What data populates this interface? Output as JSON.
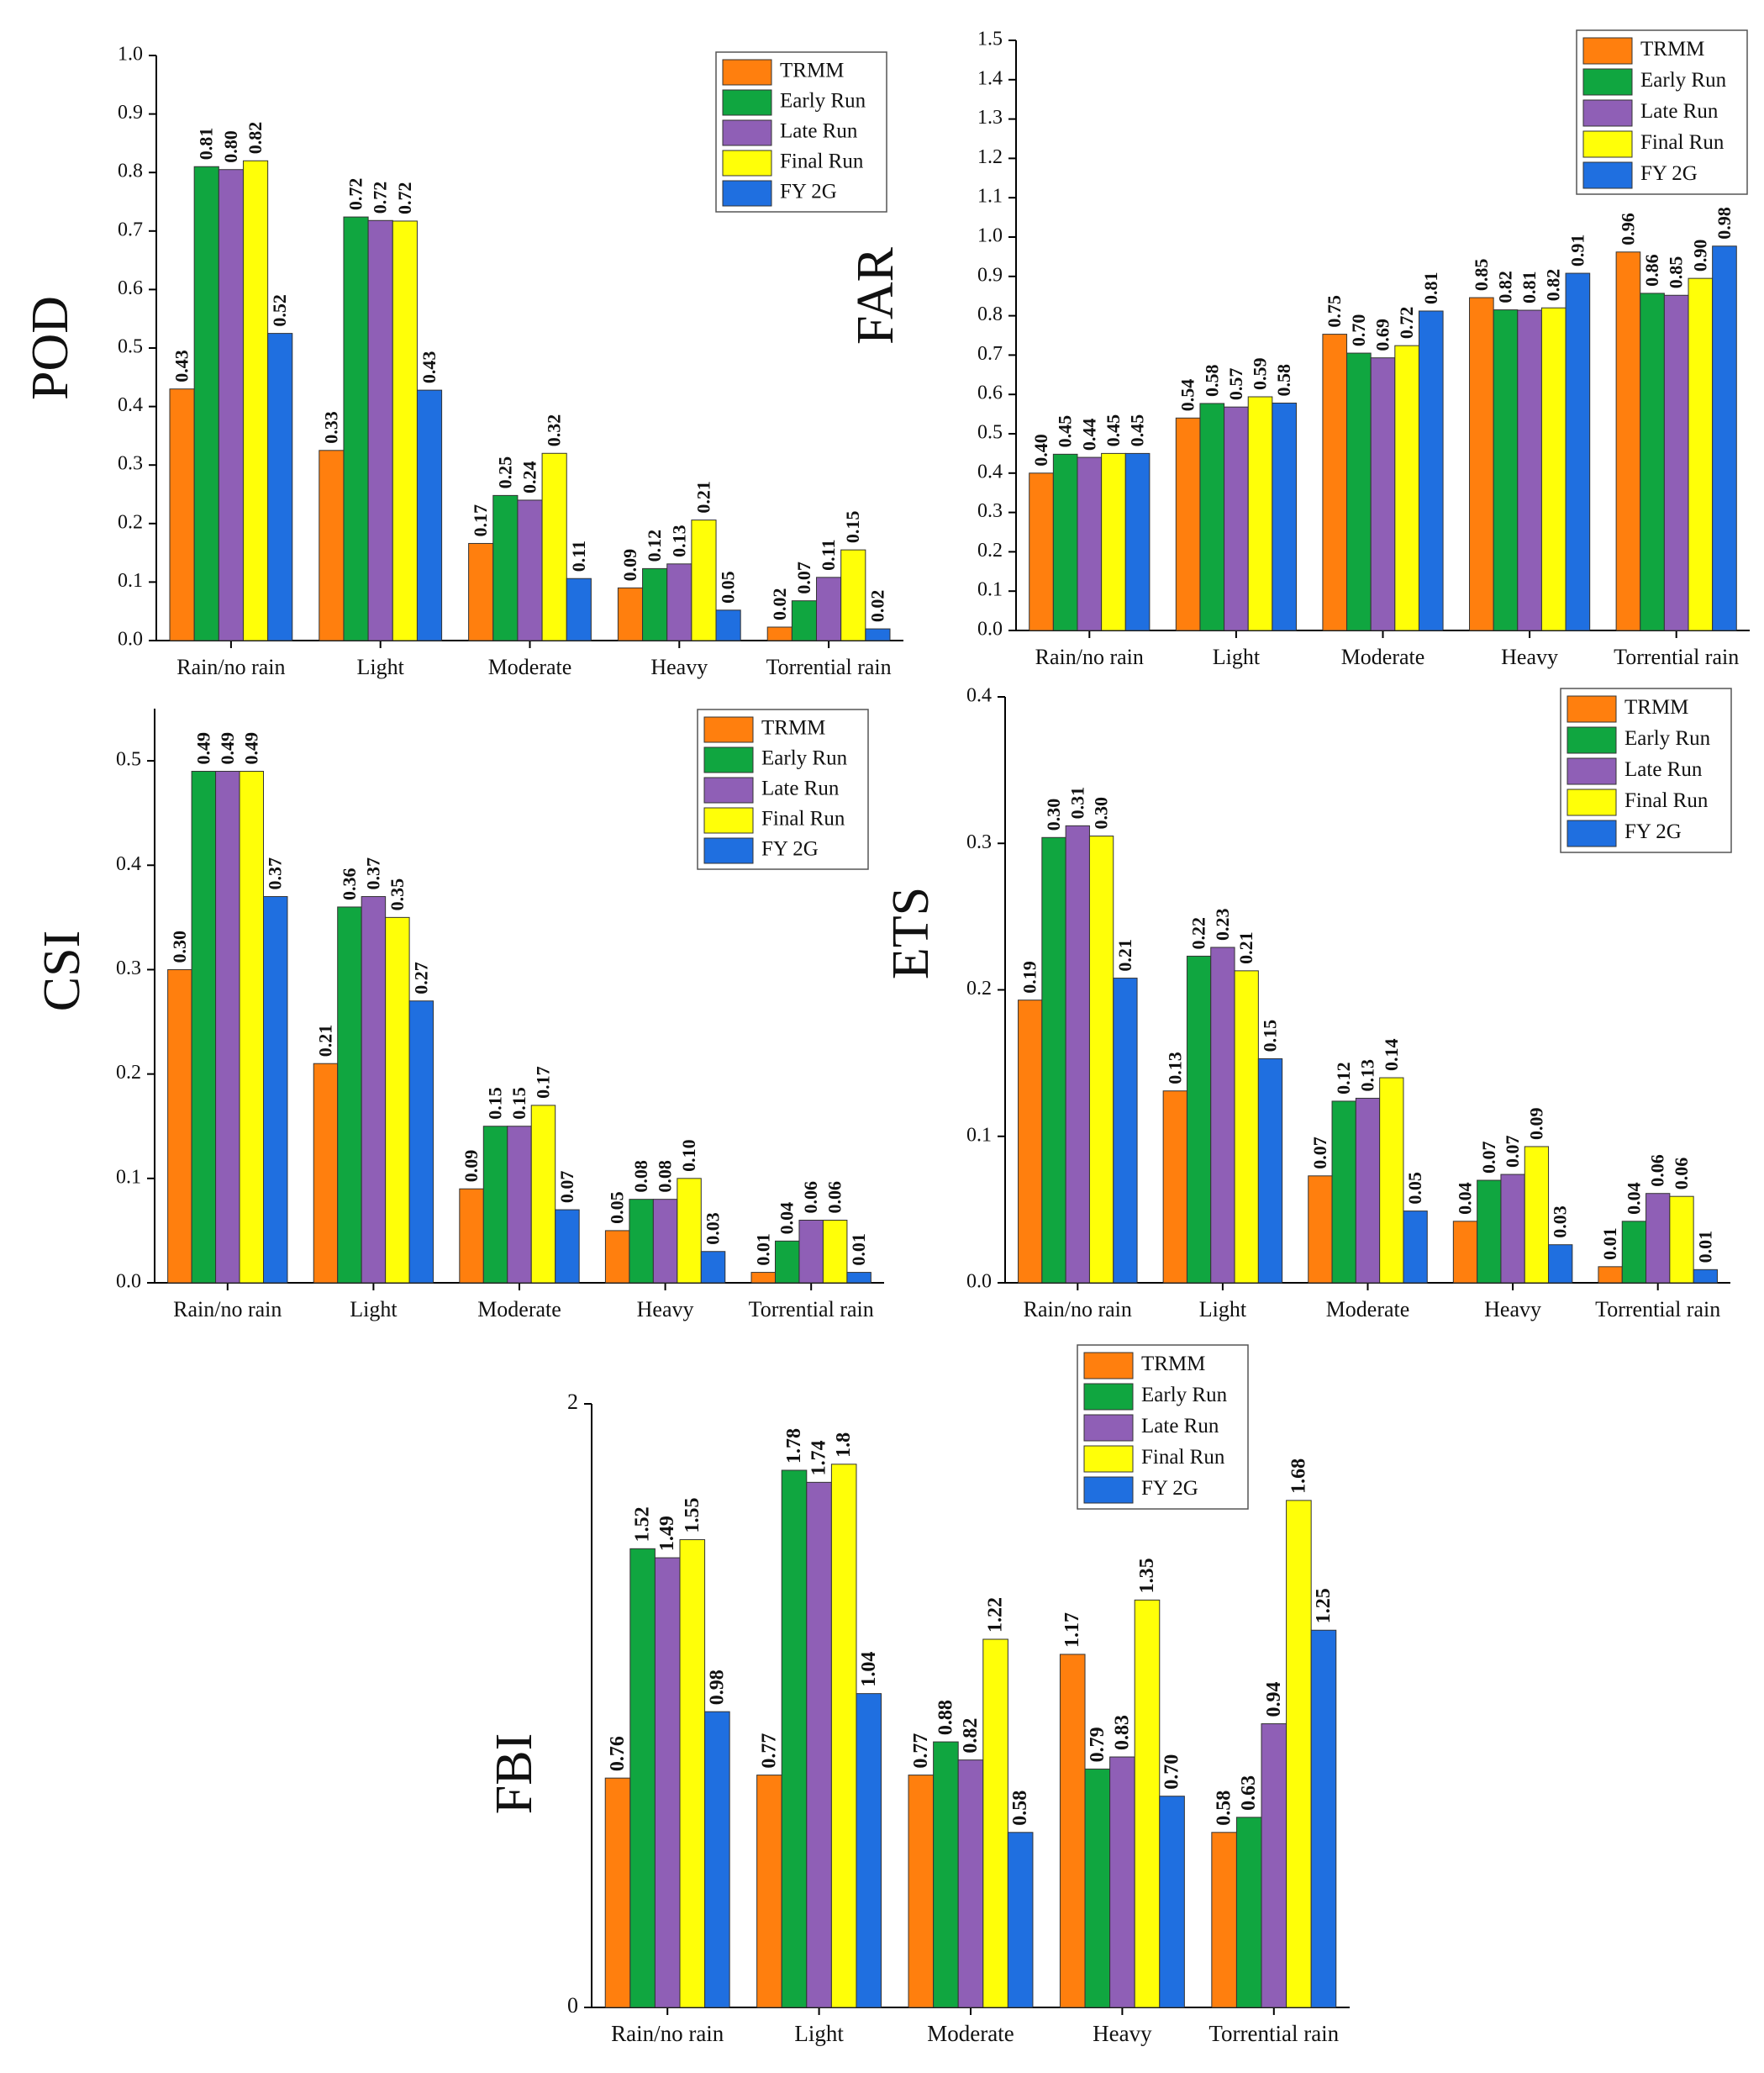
{
  "colors": {
    "TRMM": "#ff7f0e",
    "Early Run": "#10a640",
    "Late Run": "#8f5fb6",
    "Final Run": "#ffff08",
    "FY 2G": "#1f6fe0"
  },
  "chart_data": [
    {
      "type": "bar",
      "title": "",
      "ylabel": "POD",
      "xlabel": "",
      "ylim": [
        0,
        1.0
      ],
      "yticks": [
        "0.0",
        "0.1",
        "0.2",
        "0.3",
        "0.4",
        "0.5",
        "0.6",
        "0.7",
        "0.8",
        "0.9",
        "1.0"
      ],
      "legend_position": "top-right",
      "categories": [
        "Rain/no rain",
        "Light",
        "Moderate",
        "Heavy",
        "Torrential rain"
      ],
      "series": [
        {
          "name": "TRMM",
          "values": [
            0.43,
            0.325,
            0.166,
            0.09,
            0.023
          ],
          "labels": [
            "0.43",
            "0.33",
            "0.17",
            "0.09",
            "0.02"
          ]
        },
        {
          "name": "Early Run",
          "values": [
            0.81,
            0.724,
            0.248,
            0.123,
            0.068
          ],
          "labels": [
            "0.81",
            "0.72",
            "0.25",
            "0.12",
            "0.07"
          ]
        },
        {
          "name": "Late Run",
          "values": [
            0.805,
            0.718,
            0.24,
            0.131,
            0.108
          ],
          "labels": [
            "0.80",
            "0.72",
            "0.24",
            "0.13",
            "0.11"
          ]
        },
        {
          "name": "Final Run",
          "values": [
            0.82,
            0.717,
            0.32,
            0.206,
            0.155
          ],
          "labels": [
            "0.82",
            "0.72",
            "0.32",
            "0.21",
            "0.15"
          ]
        },
        {
          "name": "FY 2G",
          "values": [
            0.525,
            0.428,
            0.106,
            0.052,
            0.02
          ],
          "labels": [
            "0.52",
            "0.43",
            "0.11",
            "0.05",
            "0.02"
          ]
        }
      ]
    },
    {
      "type": "bar",
      "title": "",
      "ylabel": "FAR",
      "xlabel": "",
      "ylim": [
        0,
        1.5
      ],
      "yticks": [
        "0.0",
        "0.1",
        "0.2",
        "0.3",
        "0.4",
        "0.5",
        "0.6",
        "0.7",
        "0.8",
        "0.9",
        "1.0",
        "1.1",
        "1.2",
        "1.3",
        "1.4",
        "1.5"
      ],
      "legend_position": "top-right",
      "categories": [
        "Rain/no rain",
        "Light",
        "Moderate",
        "Heavy",
        "Torrential rain"
      ],
      "series": [
        {
          "name": "TRMM",
          "values": [
            0.4,
            0.54,
            0.753,
            0.846,
            0.962
          ],
          "labels": [
            "0.40",
            "0.54",
            "0.75",
            "0.85",
            "0.96"
          ]
        },
        {
          "name": "Early Run",
          "values": [
            0.448,
            0.577,
            0.705,
            0.815,
            0.857
          ],
          "labels": [
            "0.45",
            "0.58",
            "0.70",
            "0.82",
            "0.86"
          ]
        },
        {
          "name": "Late Run",
          "values": [
            0.44,
            0.568,
            0.693,
            0.814,
            0.852
          ],
          "labels": [
            "0.44",
            "0.57",
            "0.69",
            "0.81",
            "0.85"
          ]
        },
        {
          "name": "Final Run",
          "values": [
            0.45,
            0.594,
            0.724,
            0.82,
            0.895
          ],
          "labels": [
            "0.45",
            "0.59",
            "0.72",
            "0.82",
            "0.90"
          ]
        },
        {
          "name": "FY 2G",
          "values": [
            0.45,
            0.578,
            0.812,
            0.908,
            0.977
          ],
          "labels": [
            "0.45",
            "0.58",
            "0.81",
            "0.91",
            "0.98"
          ]
        }
      ]
    },
    {
      "type": "bar",
      "title": "",
      "ylabel": "CSI",
      "xlabel": "",
      "ylim": [
        0,
        0.55
      ],
      "yticks": [
        "0.0",
        "0.1",
        "0.2",
        "0.3",
        "0.4",
        "0.5"
      ],
      "legend_position": "top-right",
      "categories": [
        "Rain/no rain",
        "Light",
        "Moderate",
        "Heavy",
        "Torrential rain"
      ],
      "series": [
        {
          "name": "TRMM",
          "values": [
            0.3,
            0.21,
            0.09,
            0.05,
            0.01
          ],
          "labels": [
            "0.30",
            "0.21",
            "0.09",
            "0.05",
            "0.01"
          ]
        },
        {
          "name": "Early Run",
          "values": [
            0.49,
            0.36,
            0.15,
            0.08,
            0.04
          ],
          "labels": [
            "0.49",
            "0.36",
            "0.15",
            "0.08",
            "0.04"
          ]
        },
        {
          "name": "Late Run",
          "values": [
            0.49,
            0.37,
            0.15,
            0.08,
            0.06
          ],
          "labels": [
            "0.49",
            "0.37",
            "0.15",
            "0.08",
            "0.06"
          ]
        },
        {
          "name": "Final Run",
          "values": [
            0.49,
            0.35,
            0.17,
            0.1,
            0.06
          ],
          "labels": [
            "0.49",
            "0.35",
            "0.17",
            "0.10",
            "0.06"
          ]
        },
        {
          "name": "FY 2G",
          "values": [
            0.37,
            0.27,
            0.07,
            0.03,
            0.01
          ],
          "labels": [
            "0.37",
            "0.27",
            "0.07",
            "0.03",
            "0.01"
          ]
        }
      ]
    },
    {
      "type": "bar",
      "title": "",
      "ylabel": "ETS",
      "xlabel": "",
      "ylim": [
        0,
        0.4
      ],
      "yticks": [
        "0.0",
        "0.1",
        "0.2",
        "0.3",
        "0.4"
      ],
      "legend_position": "top-right",
      "categories": [
        "Rain/no rain",
        "Light",
        "Moderate",
        "Heavy",
        "Torrential rain"
      ],
      "series": [
        {
          "name": "TRMM",
          "values": [
            0.193,
            0.131,
            0.073,
            0.042,
            0.011
          ],
          "labels": [
            "0.19",
            "0.13",
            "0.07",
            "0.04",
            "0.01"
          ]
        },
        {
          "name": "Early Run",
          "values": [
            0.304,
            0.223,
            0.124,
            0.07,
            0.042
          ],
          "labels": [
            "0.30",
            "0.22",
            "0.12",
            "0.07",
            "0.04"
          ]
        },
        {
          "name": "Late Run",
          "values": [
            0.312,
            0.229,
            0.126,
            0.074,
            0.061
          ],
          "labels": [
            "0.31",
            "0.23",
            "0.13",
            "0.07",
            "0.06"
          ]
        },
        {
          "name": "Final Run",
          "values": [
            0.305,
            0.213,
            0.14,
            0.093,
            0.059
          ],
          "labels": [
            "0.30",
            "0.21",
            "0.14",
            "0.09",
            "0.06"
          ]
        },
        {
          "name": "FY 2G",
          "values": [
            0.208,
            0.153,
            0.049,
            0.026,
            0.009
          ],
          "labels": [
            "0.21",
            "0.15",
            "0.05",
            "0.03",
            "0.01"
          ]
        }
      ]
    },
    {
      "type": "bar",
      "title": "",
      "ylabel": "FBI",
      "xlabel": "",
      "ylim": [
        0,
        2
      ],
      "yticks": [
        "0",
        "2"
      ],
      "legend_position": "top-right",
      "categories": [
        "Rain/no rain",
        "Light",
        "Moderate",
        "Heavy",
        "Torrential rain"
      ],
      "series": [
        {
          "name": "TRMM",
          "values": [
            0.76,
            0.77,
            0.77,
            1.17,
            0.58
          ],
          "labels": [
            "0.76",
            "0.77",
            "0.77",
            "1.17",
            "0.58"
          ]
        },
        {
          "name": "Early Run",
          "values": [
            1.52,
            1.78,
            0.88,
            0.79,
            0.63
          ],
          "labels": [
            "1.52",
            "1.78",
            "0.88",
            "0.79",
            "0.63"
          ]
        },
        {
          "name": "Late Run",
          "values": [
            1.49,
            1.74,
            0.82,
            0.83,
            0.94
          ],
          "labels": [
            "1.49",
            "1.74",
            "0.82",
            "0.83",
            "0.94"
          ]
        },
        {
          "name": "Final Run",
          "values": [
            1.55,
            1.8,
            1.22,
            1.35,
            1.68
          ],
          "labels": [
            "1.55",
            "1.8",
            "1.22",
            "1.35",
            "1.68"
          ]
        },
        {
          "name": "FY 2G",
          "values": [
            0.98,
            1.04,
            0.58,
            0.7,
            1.25
          ],
          "labels": [
            "0.98",
            "1.04",
            "0.58",
            "0.70",
            "1.25"
          ]
        }
      ]
    }
  ]
}
